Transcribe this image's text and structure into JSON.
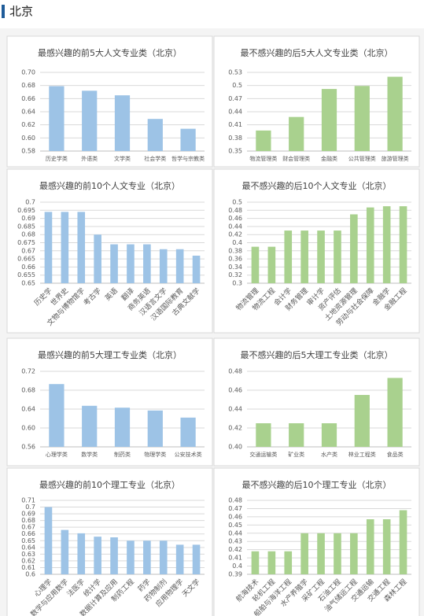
{
  "header": {
    "title": "北京"
  },
  "chart_data": [
    {
      "type": "bar",
      "title": "最感兴趣的前5大人文专业类（北京）",
      "color": "#9dc3e6",
      "grid": true,
      "categories": [
        "历史学类",
        "外语类",
        "文学类",
        "社会学类",
        "哲学与宗教类"
      ],
      "values": [
        0.679,
        0.672,
        0.665,
        0.629,
        0.614
      ],
      "ylim": [
        0.58,
        0.7
      ],
      "yticks": [
        0.58,
        {
          "value": 0.6,
          "label": "0.60"
        },
        0.62,
        0.64,
        0.66,
        0.68,
        {
          "value": 0.7,
          "label": "0.70"
        }
      ]
    },
    {
      "type": "bar",
      "title": "最不感兴趣的后5大人文专业类（北京）",
      "color": "#a9d18e",
      "grid": true,
      "categories": [
        "物流管理类",
        "财会管理类",
        "金融类",
        "公共管理类",
        "旅游管理类"
      ],
      "values": [
        0.397,
        0.428,
        0.492,
        0.499,
        0.52
      ],
      "ylim": [
        0.35,
        0.53
      ],
      "yticks": [
        0.35,
        0.38,
        0.41,
        0.44,
        0.47,
        0.5,
        0.53
      ]
    },
    {
      "type": "bar",
      "title": "最感兴趣的前10个人文专业（北京）",
      "color": "#9dc3e6",
      "grid": true,
      "categories": [
        "历史学",
        "世界史",
        "文物与博物馆学",
        "考古学",
        "英语",
        "翻译",
        "商务英语",
        "汉语言文学",
        "汉语国际教育",
        "古典文献学"
      ],
      "values": [
        0.694,
        0.694,
        0.694,
        0.68,
        0.674,
        0.674,
        0.674,
        0.671,
        0.671,
        0.667
      ],
      "ylim": [
        0.65,
        0.7
      ],
      "yticks": [
        0.65,
        0.655,
        0.66,
        0.665,
        0.67,
        0.675,
        0.68,
        0.685,
        0.69,
        0.695,
        0.7
      ]
    },
    {
      "type": "bar",
      "title": "最不感兴趣的后10个人文专业（北京）",
      "color": "#a9d18e",
      "grid": true,
      "categories": [
        "物流管理",
        "物流工程",
        "会计学",
        "财务管理",
        "审计学",
        "资产评估",
        "土地资源管理",
        "劳动与社会保障",
        "金融学",
        "金融工程"
      ],
      "values": [
        0.39,
        0.39,
        0.43,
        0.43,
        0.43,
        0.43,
        0.47,
        0.487,
        0.49,
        0.49
      ],
      "ylim": [
        0.3,
        0.5
      ],
      "yticks": [
        0.3,
        0.32,
        0.34,
        0.36,
        0.38,
        0.4,
        0.42,
        0.44,
        0.46,
        0.48,
        0.5
      ]
    },
    {
      "type": "bar",
      "title": "最感兴趣的前5大理工专业类（北京）",
      "color": "#9dc3e6",
      "grid": true,
      "categories": [
        "心理学类",
        "数学类",
        "制药类",
        "物理学类",
        "公安技术类"
      ],
      "values": [
        0.693,
        0.647,
        0.643,
        0.637,
        0.622
      ],
      "ylim": [
        0.56,
        0.72
      ],
      "yticks": [
        0.56,
        {
          "value": 0.6,
          "label": "0.60"
        },
        0.64,
        0.68,
        0.72
      ]
    },
    {
      "type": "bar",
      "title": "最不感兴趣的后5大理工专业类（北京）",
      "color": "#a9d18e",
      "grid": true,
      "categories": [
        "交通运输类",
        "矿业类",
        "水产类",
        "林业工程类",
        "食品类"
      ],
      "values": [
        0.425,
        0.425,
        0.425,
        0.455,
        0.473
      ],
      "ylim": [
        0.4,
        0.48
      ],
      "yticks": [
        {
          "value": 0.4,
          "label": "0.40"
        },
        0.42,
        0.44,
        0.46,
        0.48
      ]
    },
    {
      "type": "bar",
      "title": "最感兴趣的前10个理工专业（北京）",
      "color": "#9dc3e6",
      "grid": true,
      "categories": [
        "心理学",
        "数学与应用数学",
        "法医学",
        "统计学",
        "数据计算及应用",
        "制药工程",
        "药学",
        "药物制剂",
        "应用物理学",
        "天文学"
      ],
      "values": [
        0.7,
        0.666,
        0.661,
        0.656,
        0.655,
        0.65,
        0.65,
        0.65,
        0.644,
        0.644
      ],
      "ylim": [
        0.6,
        0.71
      ],
      "yticks": [
        0.6,
        0.61,
        0.62,
        0.63,
        0.64,
        0.65,
        0.66,
        0.67,
        0.68,
        0.69,
        0.7,
        0.71
      ]
    },
    {
      "type": "bar",
      "title": "最不感兴趣的后10个理工专业（北京）",
      "color": "#a9d18e",
      "grid": true,
      "categories": [
        "航海技术",
        "轮机工程",
        "船舶与海洋工程",
        "水产养殖学",
        "采矿工程",
        "石油工程",
        "油气储运工程",
        "交通运输",
        "交通工程",
        "森林工程"
      ],
      "values": [
        0.418,
        0.418,
        0.418,
        0.44,
        0.44,
        0.44,
        0.44,
        0.457,
        0.457,
        0.468
      ],
      "ylim": [
        0.39,
        0.48
      ],
      "yticks": [
        0.39,
        0.4,
        0.41,
        0.42,
        0.43,
        0.44,
        0.45,
        0.46,
        0.47,
        0.48
      ]
    }
  ]
}
